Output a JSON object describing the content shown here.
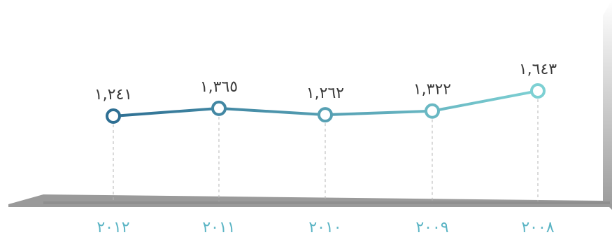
{
  "chart_data": {
    "type": "line",
    "categories": [
      "٢٠١٢",
      "٢٠١١",
      "٢٠١٠",
      "٢٠٠٩",
      "٢٠٠٨"
    ],
    "values": [
      1241,
      1365,
      1262,
      1322,
      1643
    ],
    "value_labels": [
      "١,٢٤١",
      "١,٣٦٥",
      "١,٢٦٢",
      "١,٣٢٢",
      "١,٦٤٣"
    ],
    "title": "",
    "xlabel": "",
    "ylabel": "",
    "grid": false,
    "colors": {
      "line_start": "#2e6f93",
      "line_end": "#7dd0d3",
      "frame": "#9a9a9a",
      "guide": "#b5b5b5",
      "category_text": "#5ab4c4",
      "value_text": "#3a3a3a"
    }
  }
}
